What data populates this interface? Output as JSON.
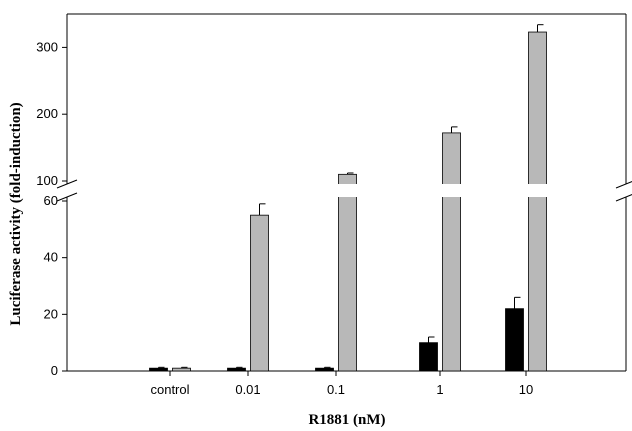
{
  "chart_data": {
    "type": "bar",
    "title": "",
    "xlabel": "R1881 (nM)",
    "ylabel": "Luciferase activity (fold-induction)",
    "categories": [
      "control",
      "0.01",
      "0.1",
      "1",
      "10"
    ],
    "series": [
      {
        "color": "#000000",
        "values": [
          1,
          1,
          1,
          10,
          22
        ],
        "errors": [
          0.3,
          0.3,
          0.3,
          2,
          4
        ]
      },
      {
        "color": "#b8b8b8",
        "values": [
          1,
          55,
          110,
          172,
          323
        ],
        "errors": [
          0.3,
          4,
          2,
          9,
          11
        ]
      }
    ],
    "axis_break": {
      "lower_range": [
        0,
        60
      ],
      "upper_range": [
        100,
        350
      ]
    },
    "yticks_lower": [
      "0",
      "20",
      "40",
      "60"
    ],
    "yticks_upper": [
      "100",
      "200",
      "300"
    ],
    "grid": false,
    "legend": "none"
  }
}
